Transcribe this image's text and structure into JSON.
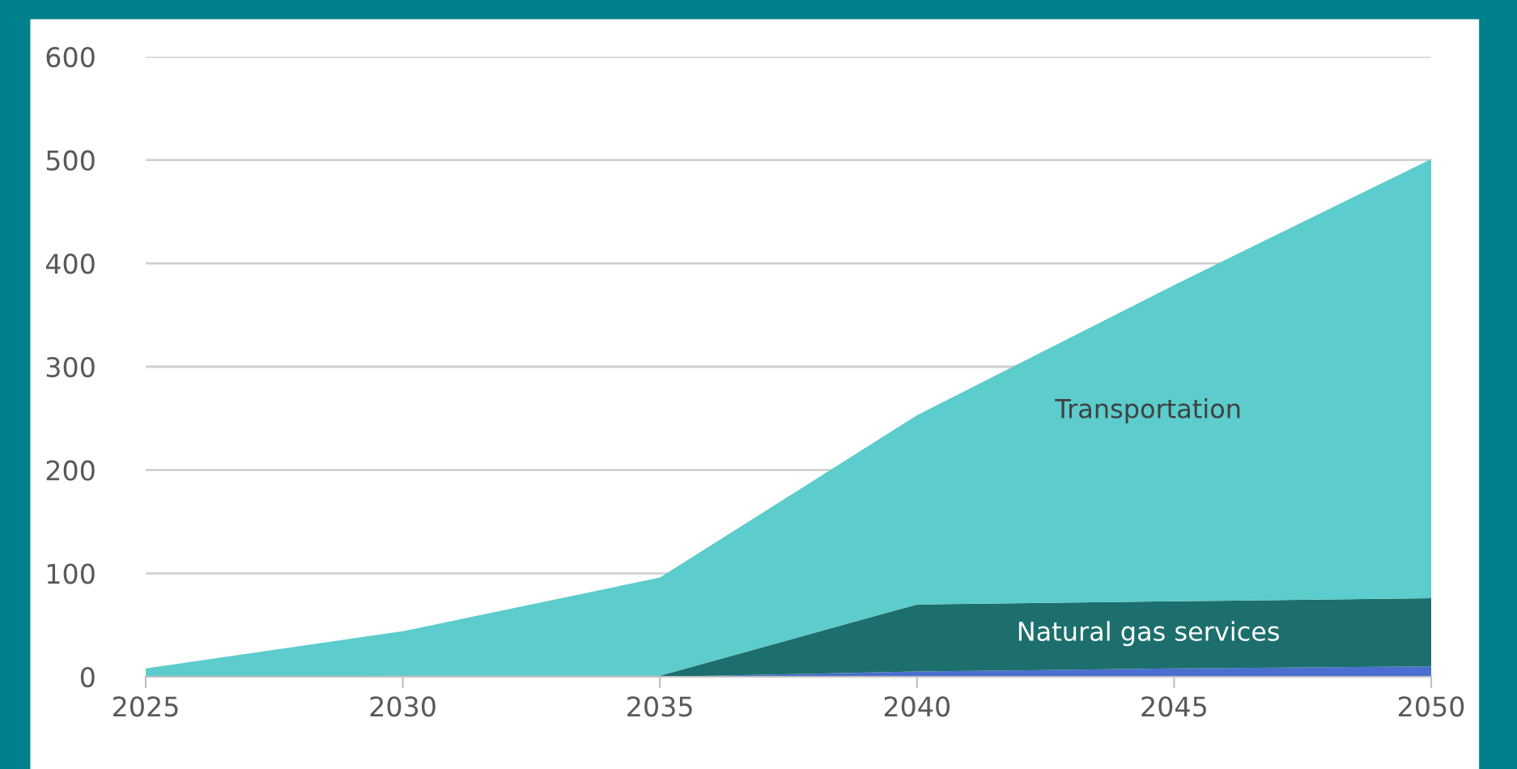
{
  "chart_data": {
    "type": "area",
    "stacked": true,
    "x": [
      2025,
      2030,
      2035,
      2040,
      2045,
      2050
    ],
    "series": [
      {
        "name": null,
        "color": "#4a6fd0",
        "values": [
          0,
          0,
          0,
          5,
          8,
          10
        ]
      },
      {
        "name": "Natural gas services",
        "color": "#1d6f6d",
        "values": [
          0,
          1,
          1,
          65,
          65,
          66
        ]
      },
      {
        "name": "Transportation",
        "color": "#5ccccc",
        "values": [
          8,
          43,
          95,
          183,
          306,
          425
        ]
      }
    ],
    "xlim": [
      2025,
      2050
    ],
    "xticks": [
      2025,
      2030,
      2035,
      2040,
      2045,
      2050
    ],
    "ylim": [
      0,
      600
    ],
    "yticks": [
      0,
      100,
      200,
      300,
      400,
      500,
      600
    ],
    "grid": "y",
    "legend": false
  }
}
